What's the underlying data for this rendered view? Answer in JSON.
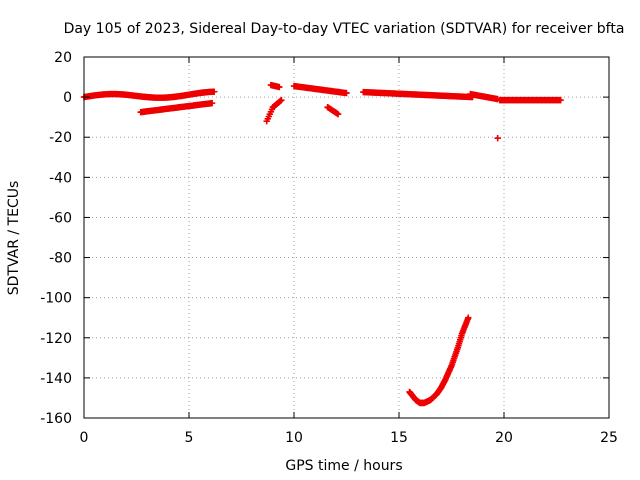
{
  "chart_data": {
    "type": "scatter",
    "title": "Day 105 of 2023, Sidereal Day-to-day VTEC variation (SDTVAR) for receiver bfta",
    "xlabel": "GPS time / hours",
    "ylabel": "SDTVAR / TECUs",
    "xlim": [
      0,
      25
    ],
    "ylim": [
      -160,
      20
    ],
    "xticks": [
      0,
      5,
      10,
      15,
      20,
      25
    ],
    "xtick_labels": [
      "0",
      "5",
      "10",
      "15",
      "20",
      "25"
    ],
    "yticks": [
      20,
      0,
      -20,
      -40,
      -60,
      -80,
      -100,
      -120,
      -140,
      -160
    ],
    "ytick_labels": [
      "20",
      "0",
      "-20",
      "-40",
      "-60",
      "-80",
      "-100",
      "-120",
      "-140",
      "-160"
    ],
    "grid": true,
    "legend": "none",
    "marker": "plus",
    "color": "#ee0000",
    "series": [
      {
        "segments": [
          {
            "x": [
              0.0,
              6.2
            ],
            "y": [
              0.0,
              1.5
            ],
            "shape": "wave",
            "amp": 1.2,
            "period": 5
          },
          {
            "x": [
              2.7,
              6.1
            ],
            "y": [
              -7.5,
              -3.0
            ],
            "shape": "linear"
          },
          {
            "x": [
              8.7,
              9.0
            ],
            "y": [
              -12.0,
              -5.0
            ],
            "shape": "linear"
          },
          {
            "x": [
              9.0,
              9.4
            ],
            "y": [
              -5.0,
              -1.5
            ],
            "shape": "linear"
          },
          {
            "x": [
              8.9,
              9.3
            ],
            "y": [
              6.0,
              5.0
            ],
            "shape": "linear"
          },
          {
            "x": [
              10.0,
              12.5
            ],
            "y": [
              5.5,
              2.0
            ],
            "shape": "linear"
          },
          {
            "x": [
              11.6,
              12.1
            ],
            "y": [
              -5.0,
              -8.5
            ],
            "shape": "linear"
          },
          {
            "x": [
              13.3,
              18.5
            ],
            "y": [
              2.5,
              0.0
            ],
            "shape": "linear"
          },
          {
            "x": [
              18.4,
              19.7
            ],
            "y": [
              1.5,
              -1.0
            ],
            "shape": "linear"
          },
          {
            "x": [
              19.8,
              22.7
            ],
            "y": [
              -1.5,
              -1.5
            ],
            "shape": "linear"
          }
        ],
        "points": [
          {
            "x": 19.7,
            "y": -20.5
          }
        ],
        "curve": {
          "x": [
            15.5,
            15.8,
            16.0,
            16.2,
            16.5,
            16.8,
            17.0,
            17.2,
            17.5,
            17.8,
            18.0,
            18.3
          ],
          "y": [
            -147,
            -151,
            -152.5,
            -152.5,
            -151,
            -148,
            -145,
            -141,
            -134,
            -125,
            -118,
            -110
          ]
        }
      }
    ]
  }
}
